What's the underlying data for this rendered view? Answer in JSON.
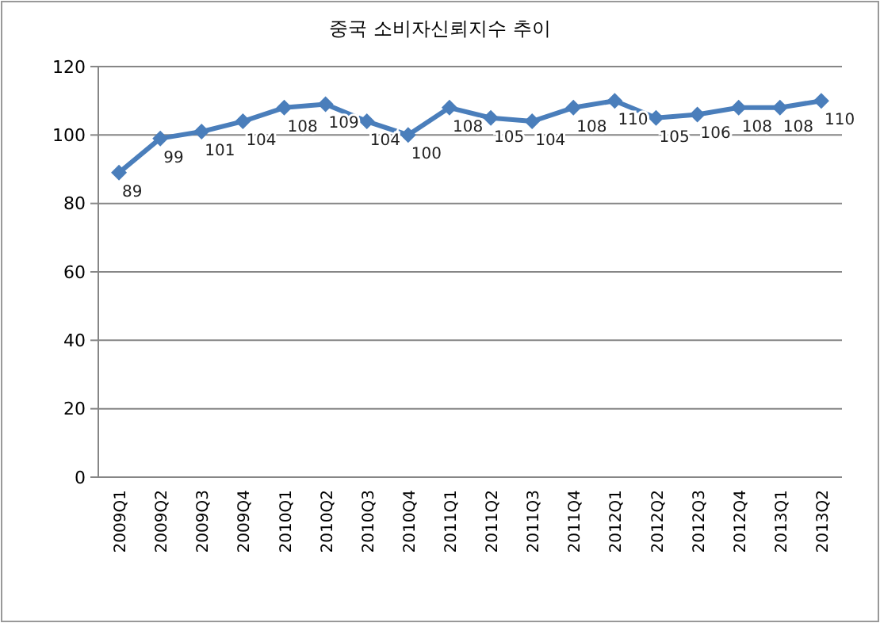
{
  "chart_data": {
    "type": "line",
    "title": "중국 소비자신뢰지수 추이",
    "categories": [
      "2009Q1",
      "2009Q2",
      "2009Q3",
      "2009Q4",
      "2010Q1",
      "2010Q2",
      "2010Q3",
      "2010Q4",
      "2011Q1",
      "2011Q2",
      "2011Q3",
      "2011Q4",
      "2012Q1",
      "2012Q2",
      "2012Q3",
      "2012Q4",
      "2013Q1",
      "2013Q2"
    ],
    "series": [
      {
        "color": "#4a7ebb",
        "values": [
          89,
          99,
          101,
          104,
          108,
          109,
          104,
          100,
          108,
          105,
          104,
          108,
          110,
          105,
          106,
          108,
          108,
          110
        ]
      }
    ],
    "ylim": [
      0,
      120
    ],
    "yticks": [
      0,
      20,
      40,
      60,
      80,
      100,
      120
    ],
    "grid": "y",
    "marker": "diamond",
    "line_style": "solid",
    "data_labels": true
  }
}
